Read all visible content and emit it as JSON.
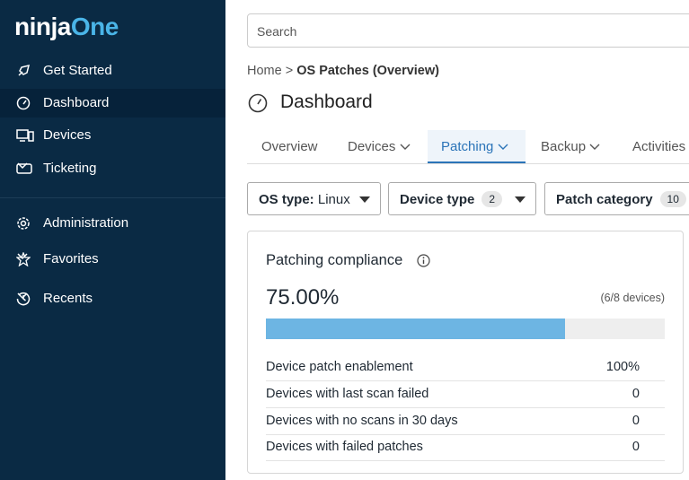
{
  "sidebar": {
    "logo_a": "ninja",
    "logo_b": "One",
    "nav_items": [
      "Get Started",
      "Dashboard",
      "Devices",
      "Ticketing"
    ],
    "secondary_items": [
      "Administration",
      "Favorites",
      "Recents"
    ]
  },
  "search": {
    "placeholder": "Search"
  },
  "breadcrumb": {
    "home": "Home",
    "separator": ">",
    "current": "OS Patches (Overview)"
  },
  "page_title": "Dashboard",
  "tabs": [
    "Overview",
    "Devices",
    "Patching",
    "Backup",
    "Activities"
  ],
  "filters": [
    {
      "label": "OS type:",
      "value": "Linux"
    },
    {
      "label": "Device type",
      "count": 2
    },
    {
      "label": "Patch category",
      "count": 10
    }
  ],
  "card": {
    "title": "Patching compliance",
    "compliance": {
      "value": 75,
      "label": "75.00%"
    },
    "devices_note": "(6/8 devices)",
    "rows": [
      [
        "Device patch enablement",
        "100%"
      ],
      [
        "Devices with last scan failed",
        0
      ],
      [
        "Devices with no scans in 30 days",
        0
      ],
      [
        "Devices with failed patches",
        0
      ]
    ]
  }
}
